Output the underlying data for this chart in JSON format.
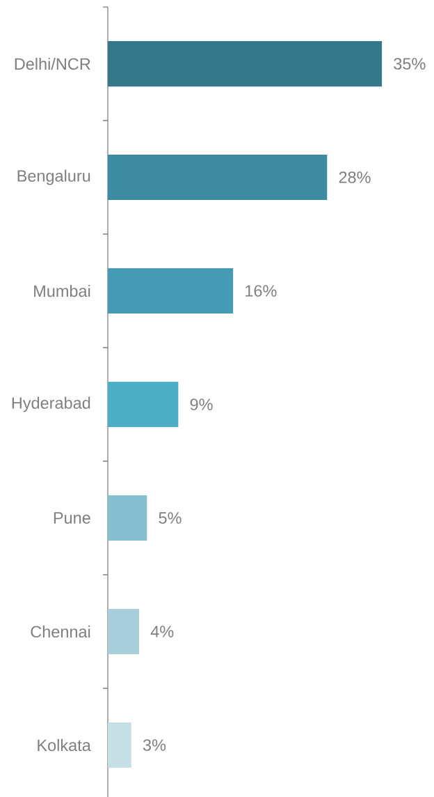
{
  "chart_data": {
    "type": "bar",
    "orientation": "horizontal",
    "categories": [
      "Delhi/NCR",
      "Bengaluru",
      "Mumbai",
      "Hyderabad",
      "Pune",
      "Chennai",
      "Kolkata"
    ],
    "values": [
      35,
      28,
      16,
      9,
      5,
      4,
      3
    ],
    "colors": [
      "#34788a",
      "#3d8ba3",
      "#459bb5",
      "#4badc6",
      "#85bfd0",
      "#a8cedc",
      "#c5dfe7"
    ],
    "value_labels": [
      "35%",
      "28%",
      "16%",
      "9%",
      "5%",
      "4%",
      "3%"
    ],
    "tick_labels": "y"
  }
}
